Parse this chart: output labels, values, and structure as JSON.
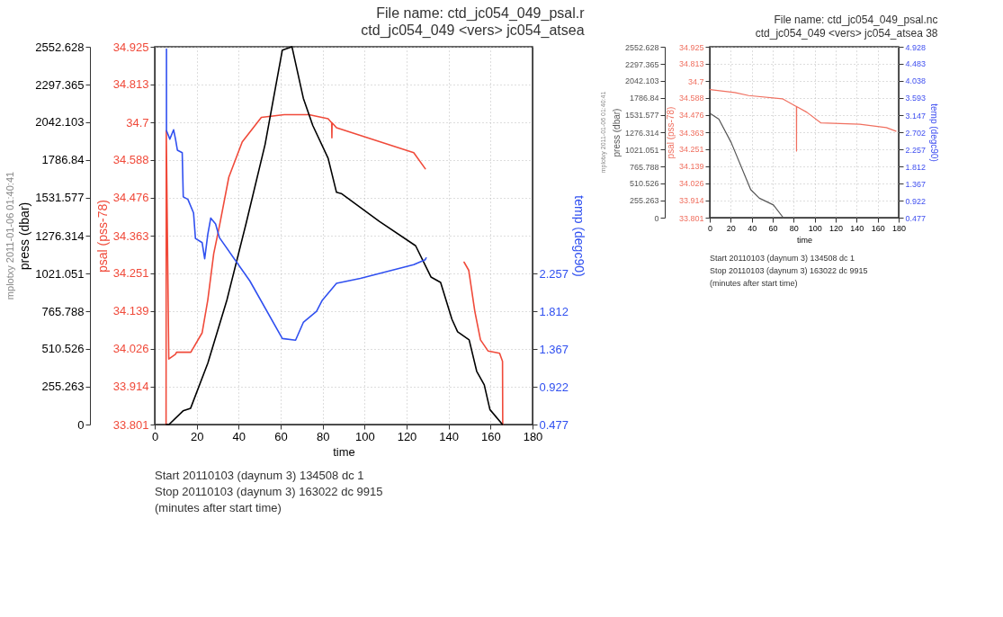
{
  "chart_data": [
    {
      "type": "line",
      "title": "File name:  ctd_jc054_049_psal.r",
      "subtitle": "ctd_jc054_049  <vers>  jc054_atsea",
      "xlabel": "time",
      "ylabel": "psal (pss-78)",
      "y2label": "temp (degc90)",
      "y3label": "press (dbar)",
      "xlim": [
        0,
        180
      ],
      "xticks": [
        0,
        20,
        40,
        60,
        80,
        100,
        120,
        140,
        160,
        180
      ],
      "ylim": [
        33.801,
        34.925
      ],
      "yticks": [
        33.801,
        33.914,
        34.026,
        34.139,
        34.251,
        34.363,
        34.476,
        34.588,
        34.7,
        34.813,
        34.925
      ],
      "y2lim": [
        0.477,
        4.928
      ],
      "y2ticks": [
        0.477,
        0.922,
        1.367,
        1.812,
        2.257
      ],
      "y3lim": [
        0,
        2552.628
      ],
      "y3ticks": [
        0,
        255.263,
        510.526,
        765.788,
        1021.051,
        1276.314,
        1531.577,
        1786.84,
        2042.103,
        2297.365,
        2552.628
      ],
      "grid": true,
      "series": [
        {
          "color": "#f04a3a",
          "axis": "y",
          "x": [
            5.4,
            5.5,
            6.7,
            9.9,
            10.4,
            17.2,
            22.6,
            25.3,
            28.1,
            30.8,
            35.3,
            41.7,
            50.8,
            61.7,
            73.5,
            82.6,
            84.3,
            84.4,
            84.5,
            86.6,
            123.4,
            128.9,
            138,
            147.4,
            149.6,
            152.5,
            155.2,
            158.8,
            164.3,
            165.7,
            165.8
          ],
          "values": [
            33.801,
            34.675,
            33.996,
            34.01,
            34.016,
            34.016,
            34.074,
            34.172,
            34.309,
            34.391,
            34.537,
            34.642,
            34.715,
            34.723,
            34.723,
            34.711,
            34.699,
            34.654,
            34.699,
            34.684,
            34.61,
            34.562,
            null,
            34.284,
            34.26,
            34.138,
            34.053,
            34.02,
            34.013,
            33.989,
            33.801
          ]
        },
        {
          "color": "#000000",
          "axis": "y3",
          "x": [
            5.4,
            6.8,
            13.5,
            17.1,
            25.3,
            34.4,
            43.5,
            52.6,
            60.8,
            65.4,
            70.8,
            75.3,
            82.6,
            86.6,
            88.9,
            107,
            124.3,
            131.6,
            136.2,
            141.6,
            144.3,
            149.8,
            153.4,
            157,
            159.7,
            165.7
          ],
          "values": [
            0,
            0,
            92,
            110,
            415,
            842,
            1357,
            1894,
            2530,
            2552,
            2205,
            2021,
            1800,
            1569,
            1561,
            1373,
            1208,
            997,
            960,
            711,
            627,
            572,
            360,
            268,
            101,
            0
          ]
        },
        {
          "color": "#3050f0",
          "axis": "y2",
          "x": [
            5.6,
            5.6,
            7.2,
            9.0,
            9.9,
            10.8,
            13.1,
            13.6,
            15.8,
            18.5,
            19.4,
            22.6,
            23.8,
            25.3,
            26.7,
            29.0,
            30.8,
            45.3,
            60.8,
            67.1,
            70.8,
            77.1,
            79.8,
            86.6,
            98.0,
            123.4,
            128.9,
            129.3
          ],
          "values": [
            4.9,
            3.94,
            3.84,
            3.95,
            3.84,
            3.71,
            3.68,
            3.16,
            3.13,
            2.97,
            2.67,
            2.62,
            2.43,
            2.72,
            2.91,
            2.84,
            2.68,
            2.17,
            1.49,
            1.47,
            1.68,
            1.81,
            1.94,
            2.14,
            2.2,
            2.36,
            2.42,
            2.44
          ]
        }
      ],
      "annotations": [
        "mplotxy 2011-01-06 01:40:41",
        "Start  20110103 (daynum   3) 134508 dc 1",
        "Stop  20110103 (daynum   3) 163022 dc 9915",
        "(minutes after start time)"
      ]
    },
    {
      "type": "line",
      "title": "File name:  ctd_jc054_049_psal.nc",
      "subtitle": "ctd_jc054_049  <vers>  jc054_atsea   38",
      "xlabel": "time",
      "ylabel": "psal (pss-78)",
      "y2label": "temp (degc90)",
      "y3label": "press (dbar)",
      "xlim": [
        0,
        180
      ],
      "xticks": [
        0,
        20,
        40,
        60,
        80,
        100,
        120,
        140,
        160,
        180
      ],
      "ylim": [
        33.801,
        34.925
      ],
      "yticks": [
        33.801,
        33.914,
        34.026,
        34.139,
        34.251,
        34.363,
        34.476,
        34.588,
        34.7,
        34.813,
        34.925
      ],
      "y2lim": [
        0.477,
        4.928
      ],
      "y2ticks": [
        0.477,
        0.922,
        1.367,
        1.812,
        2.257,
        2.702,
        3.147,
        3.593,
        4.038,
        4.483,
        4.928
      ],
      "y3lim": [
        0,
        2552.628
      ],
      "y3ticks": [
        0,
        255.263,
        510.526,
        765.788,
        1021.051,
        1276.314,
        1531.577,
        1786.84,
        2042.103,
        2297.365,
        2552.628
      ],
      "grid": true,
      "series": [
        {
          "color": "#f07060",
          "axis": "y",
          "x": [
            0.3,
            23.8,
            37.2,
            69.2,
            82.6,
            82.7,
            82.8,
            92.6,
            106,
            143,
            168.3,
            177.5
          ],
          "values": [
            34.643,
            34.624,
            34.604,
            34.583,
            34.532,
            34.239,
            34.532,
            34.494,
            34.424,
            34.416,
            34.393,
            34.37
          ]
        },
        {
          "color": "#555555",
          "axis": "y3",
          "x": [
            1.2,
            8.7,
            20.5,
            39.0,
            47.3,
            60.7,
            70.0
          ],
          "values": [
            1550,
            1470,
            1120,
            420,
            290,
            190,
            0
          ]
        }
      ],
      "annotations": [
        "mplotxy 2011-01-06 01:40:41",
        "Start  20110103 (daynum   3) 134508 dc 1",
        "Stop  20110103 (daynum   3) 163022 dc 9915",
        "(minutes after start time)"
      ]
    }
  ]
}
